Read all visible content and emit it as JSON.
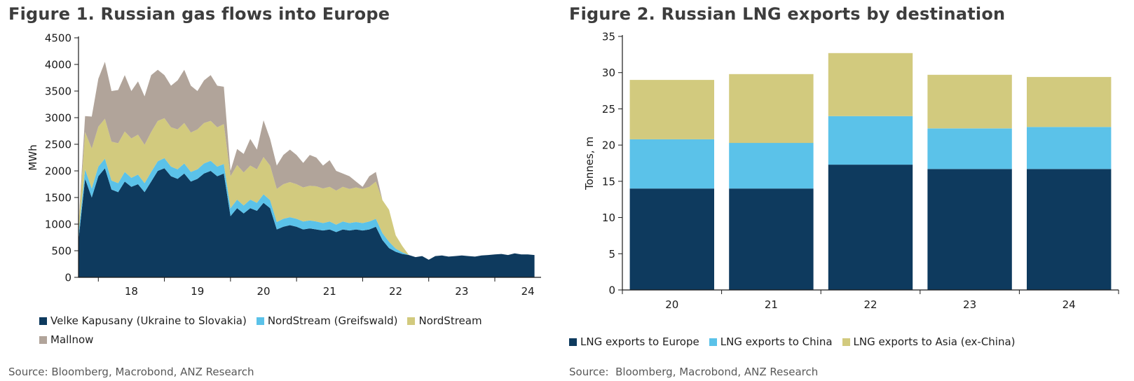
{
  "chart_data": [
    {
      "id": "fig1",
      "type": "area",
      "stacked": true,
      "title": "Figure 1. Russian gas flows into Europe",
      "ylabel": "MWh",
      "ylim": [
        0,
        4500
      ],
      "ytick_step": 500,
      "xlim": [
        2017.7,
        2024.7
      ],
      "xticks": [
        2018,
        2019,
        2020,
        2021,
        2022,
        2023,
        2024
      ],
      "xtick_labels": [
        "18",
        "19",
        "20",
        "21",
        "22",
        "23",
        "24"
      ],
      "xtick_label_positions": [
        2018.5,
        2019.5,
        2020.5,
        2021.5,
        2022.5,
        2023.5,
        2024.5
      ],
      "grid": false,
      "legend_position": "bottom",
      "source": "Source: Bloomberg, Macrobond, ANZ Research",
      "x": [
        2017.7,
        2017.8,
        2017.9,
        2018.0,
        2018.1,
        2018.2,
        2018.3,
        2018.4,
        2018.5,
        2018.6,
        2018.7,
        2018.8,
        2018.9,
        2019.0,
        2019.1,
        2019.2,
        2019.3,
        2019.4,
        2019.5,
        2019.6,
        2019.7,
        2019.8,
        2019.9,
        2020.0,
        2020.1,
        2020.2,
        2020.3,
        2020.4,
        2020.5,
        2020.6,
        2020.7,
        2020.8,
        2020.9,
        2021.0,
        2021.1,
        2021.2,
        2021.3,
        2021.4,
        2021.5,
        2021.6,
        2021.7,
        2021.8,
        2021.9,
        2022.0,
        2022.1,
        2022.2,
        2022.3,
        2022.4,
        2022.5,
        2022.6,
        2022.7,
        2022.8,
        2022.9,
        2023.0,
        2023.1,
        2023.2,
        2023.3,
        2023.4,
        2023.5,
        2023.6,
        2023.7,
        2023.8,
        2023.9,
        2024.0,
        2024.1,
        2024.2,
        2024.3,
        2024.4,
        2024.5,
        2024.6
      ],
      "series": [
        {
          "name": "Velke Kapusany (Ukraine to Slovakia)",
          "color": "#0e3a5e",
          "values": [
            700,
            1850,
            1500,
            1900,
            2050,
            1650,
            1600,
            1800,
            1700,
            1750,
            1600,
            1800,
            2000,
            2050,
            1900,
            1850,
            1950,
            1800,
            1850,
            1950,
            2000,
            1900,
            1950,
            1150,
            1300,
            1200,
            1300,
            1250,
            1400,
            1300,
            900,
            950,
            980,
            950,
            900,
            920,
            900,
            880,
            900,
            850,
            900,
            880,
            900,
            880,
            900,
            950,
            700,
            550,
            480,
            440,
            420,
            380,
            400,
            330,
            400,
            410,
            390,
            400,
            410,
            400,
            390,
            410,
            420,
            430,
            440,
            420,
            450,
            430,
            430,
            420
          ]
        },
        {
          "name": "NordStream (Greifswald)",
          "color": "#5bc2e9",
          "values": [
            120,
            180,
            170,
            180,
            180,
            170,
            170,
            180,
            170,
            180,
            170,
            180,
            180,
            190,
            180,
            180,
            190,
            180,
            180,
            190,
            190,
            180,
            180,
            150,
            160,
            150,
            160,
            150,
            160,
            150,
            140,
            150,
            150,
            150,
            150,
            150,
            150,
            140,
            150,
            140,
            150,
            140,
            140,
            140,
            150,
            150,
            130,
            120,
            60,
            30,
            0,
            0,
            0,
            0,
            0,
            0,
            0,
            0,
            0,
            0,
            0,
            0,
            0,
            0,
            0,
            0,
            0,
            0,
            0,
            0
          ]
        },
        {
          "name": "NordStream",
          "color": "#d2ca7e",
          "values": [
            150,
            700,
            750,
            750,
            750,
            730,
            750,
            760,
            740,
            750,
            720,
            750,
            760,
            750,
            740,
            750,
            760,
            740,
            750,
            760,
            750,
            740,
            750,
            600,
            650,
            620,
            640,
            630,
            700,
            650,
            620,
            650,
            660,
            650,
            640,
            650,
            660,
            650,
            650,
            640,
            650,
            640,
            650,
            640,
            650,
            700,
            620,
            600,
            250,
            120,
            0,
            0,
            0,
            0,
            0,
            0,
            0,
            0,
            0,
            0,
            0,
            0,
            0,
            0,
            0,
            0,
            0,
            0,
            0,
            0
          ]
        },
        {
          "name": "Mallnow",
          "color": "#b1a49a",
          "values": [
            30,
            300,
            600,
            900,
            1070,
            950,
            1000,
            1060,
            890,
            1000,
            910,
            1070,
            960,
            810,
            780,
            920,
            1000,
            880,
            720,
            800,
            860,
            780,
            700,
            100,
            300,
            350,
            500,
            370,
            690,
            500,
            440,
            550,
            610,
            550,
            460,
            580,
            540,
            430,
            500,
            370,
            250,
            240,
            110,
            40,
            200,
            180,
            0,
            0,
            0,
            0,
            0,
            0,
            0,
            0,
            0,
            0,
            0,
            0,
            0,
            0,
            0,
            0,
            0,
            0,
            0,
            0,
            0,
            0,
            0,
            0
          ]
        }
      ]
    },
    {
      "id": "fig2",
      "type": "bar",
      "stacked": true,
      "title": "Figure 2. Russian LNG exports by destination",
      "ylabel": "Tonnes, m",
      "ylim": [
        0,
        35
      ],
      "ytick_step": 5,
      "categories": [
        "20",
        "21",
        "22",
        "23",
        "24"
      ],
      "grid": false,
      "legend_position": "bottom",
      "source": "Source:  Bloomberg, Macrobond, ANZ Research",
      "series": [
        {
          "name": "LNG exports to Europe",
          "color": "#0e3a5e",
          "values": [
            14.0,
            14.0,
            17.3,
            16.7,
            16.7
          ]
        },
        {
          "name": "LNG exports to China",
          "color": "#5bc2e9",
          "values": [
            6.8,
            6.3,
            6.7,
            5.6,
            5.8
          ]
        },
        {
          "name": "LNG exports to Asia (ex-China)",
          "color": "#d2ca7e",
          "values": [
            8.2,
            9.5,
            8.7,
            7.4,
            6.9
          ]
        }
      ]
    }
  ]
}
